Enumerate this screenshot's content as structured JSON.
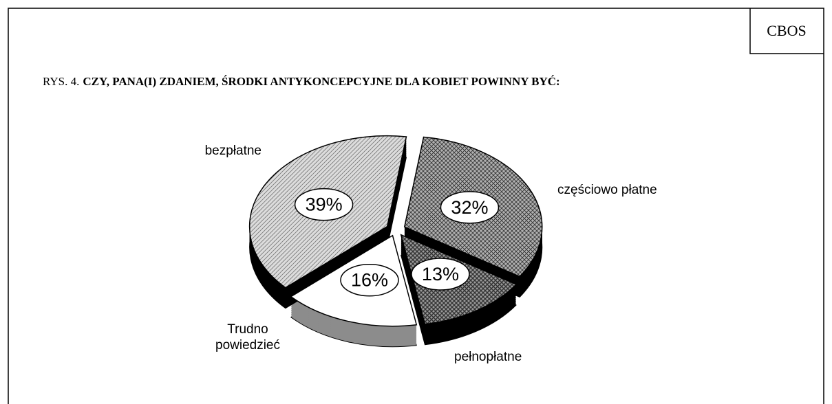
{
  "chart_data": {
    "type": "pie",
    "source": "CBOS",
    "title_prefix": "RYS. 4.",
    "title": "CZY, PANA(I) ZDANIEM, ŚRODKI ANTYKONCEPCYJNE DLA KOBIET POWINNY BYĆ:",
    "categories": [
      "częściowo płatne",
      "pełnopłatne",
      "Trudno powiedzieć",
      "bezpłatne"
    ],
    "values": [
      32,
      13,
      16,
      39
    ],
    "value_labels": [
      "32%",
      "13%",
      "16%",
      "39%"
    ],
    "colors": [
      "#b0b0b0",
      "#9a9a9a",
      "#ffffff",
      "#dcdcdc"
    ],
    "patterns": [
      "cross",
      "dense-cross",
      "none",
      "diagonal"
    ],
    "side_colors": [
      "#000000",
      "#000000",
      "#8c8c8c",
      "#000000"
    ]
  }
}
